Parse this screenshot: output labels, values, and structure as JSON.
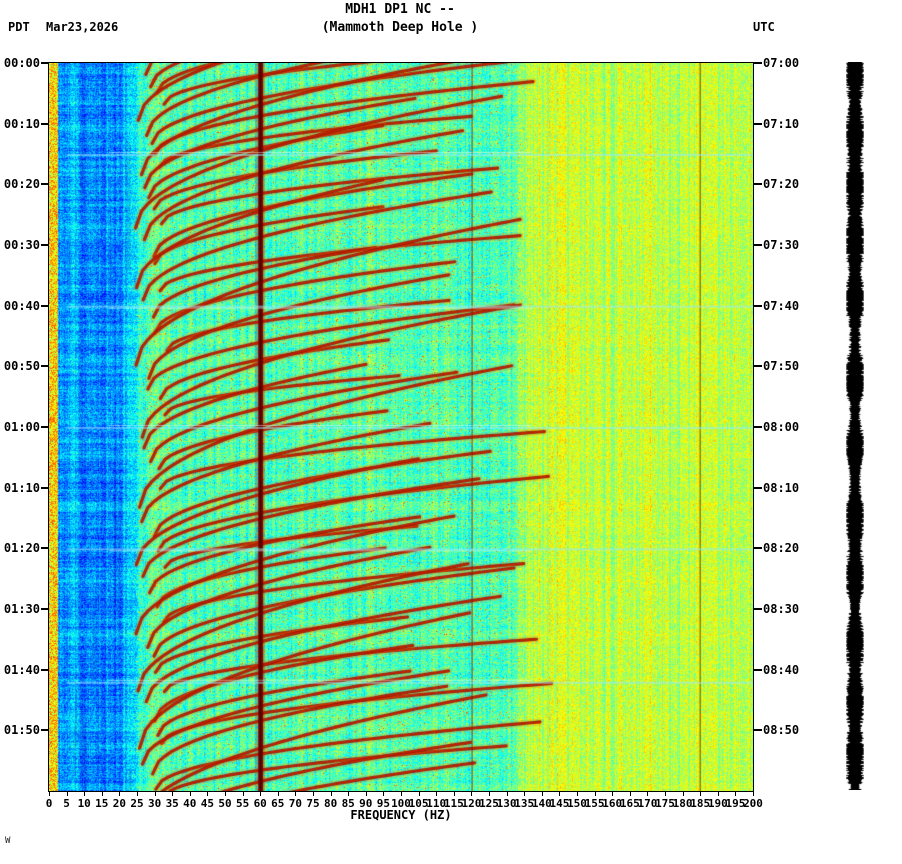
{
  "header": {
    "title_line1": "MDH1 DP1 NC --",
    "title_line2": "(Mammoth Deep Hole )",
    "left_timezone": "PDT",
    "date": "Mar23,2026",
    "right_timezone": "UTC"
  },
  "footer": {
    "corner_mark": "W"
  },
  "chart_data": {
    "type": "heatmap",
    "subtype": "spectrogram",
    "station": "MDH1 DP1 NC --",
    "station_description": "(Mammoth Deep Hole )",
    "xlabel": "FREQUENCY (HZ)",
    "x_min_hz": 0,
    "x_max_hz": 200,
    "x_tick_step_hz": 5,
    "freq_tick_labels": [
      "0",
      "5",
      "10",
      "15",
      "20",
      "25",
      "30",
      "35",
      "40",
      "45",
      "50",
      "55",
      "60",
      "65",
      "70",
      "75",
      "80",
      "85",
      "90",
      "95",
      "100",
      "105",
      "110",
      "115",
      "120",
      "125",
      "130",
      "135",
      "140",
      "145",
      "150",
      "155",
      "160",
      "165",
      "170",
      "175",
      "180",
      "185",
      "190",
      "195",
      "200"
    ],
    "time_span_minutes": 120,
    "tick_interval_minutes": 10,
    "left_axis": {
      "timezone": "PDT",
      "tick_labels": [
        "00:00",
        "00:10",
        "00:20",
        "00:30",
        "00:40",
        "00:50",
        "01:00",
        "01:10",
        "01:20",
        "01:30",
        "01:40",
        "01:50"
      ]
    },
    "right_axis": {
      "timezone": "UTC",
      "tick_labels": [
        "07:00",
        "07:10",
        "07:20",
        "07:30",
        "07:40",
        "07:50",
        "08:00",
        "08:10",
        "08:20",
        "08:30",
        "08:40",
        "08:50"
      ]
    },
    "colormap": "jet",
    "mains_hum_lines_hz": [
      60,
      120,
      180
    ],
    "quiet_blue_band_hz": [
      3,
      24
    ],
    "yellow_background_above_hz": 135,
    "harmonic_arc_band_hz": [
      20,
      135
    ],
    "event_spacing_minutes_approx": 10,
    "event_count_approx": 12,
    "broadband_burst_times_pdt": [
      "00:15",
      "00:40",
      "01:00",
      "01:20",
      "01:42"
    ],
    "features": "repeating upward-sweeping harmonic red arcs (tremor chirp events) between ~20 and ~135 Hz; strong dark-red 60 Hz mains line with faint 120/180 Hz harmonics; quiet blue band 3-24 Hz; yellow-green background above 135 Hz; black seismogram amplitude strip at right edge"
  }
}
